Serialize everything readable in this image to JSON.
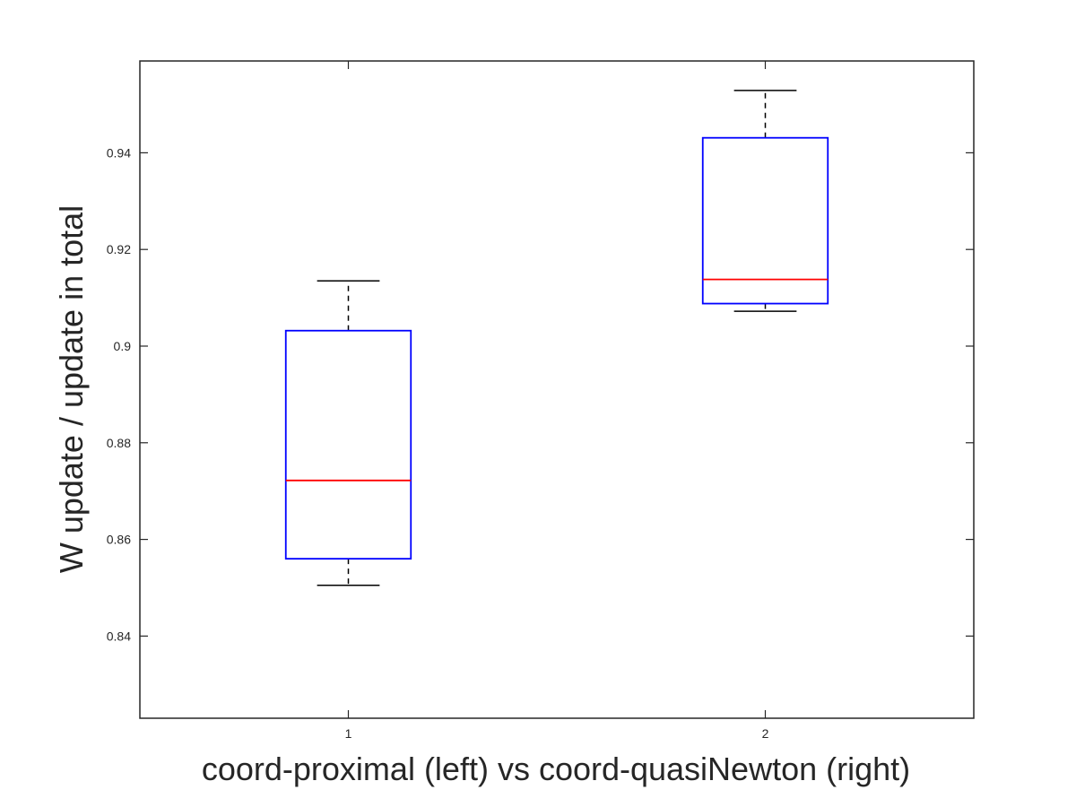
{
  "chart_data": {
    "type": "box",
    "title": "",
    "xlabel": "coord-proximal (left) vs coord-quasiNewton (right)",
    "ylabel": "W update / update in total",
    "categories": [
      "1",
      "2"
    ],
    "ylim": [
      0.823,
      0.959
    ],
    "yticks": [
      0.84,
      0.86,
      0.88,
      0.9,
      0.92,
      0.94
    ],
    "ytick_labels": [
      "0.84",
      "0.86",
      "0.88",
      "0.9",
      "0.92",
      "0.94"
    ],
    "boxes": [
      {
        "category": "1",
        "whisker_low": 0.8505,
        "q1": 0.856,
        "median": 0.8722,
        "q3": 0.9032,
        "whisker_high": 0.9135
      },
      {
        "category": "2",
        "whisker_low": 0.9072,
        "q1": 0.9088,
        "median": 0.9138,
        "q3": 0.9431,
        "whisker_high": 0.9529
      }
    ],
    "grid": false,
    "colors": {
      "box": "#0000ff",
      "median": "#ff0000",
      "whisker": "#000000",
      "axes": "#262626"
    }
  }
}
